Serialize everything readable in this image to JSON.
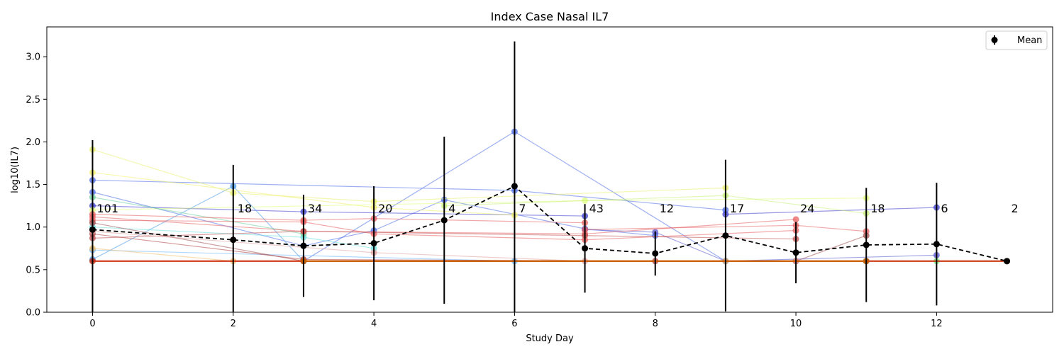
{
  "chart_data": {
    "type": "line",
    "title": "Index Case Nasal IL7",
    "xlabel": "Study Day",
    "ylabel": "log10(IL7)",
    "xlim": [
      -0.65,
      13.65
    ],
    "ylim": [
      0.0,
      3.35
    ],
    "xticks": [
      0,
      2,
      4,
      6,
      8,
      10,
      12
    ],
    "yticks": [
      0.0,
      0.5,
      1.0,
      1.5,
      2.0,
      2.5,
      3.0
    ],
    "xtick_labels": [
      "0",
      "2",
      "4",
      "6",
      "8",
      "10",
      "12"
    ],
    "ytick_labels": [
      "0.0",
      "0.5",
      "1.0",
      "1.5",
      "2.0",
      "2.5",
      "3.0"
    ],
    "grid": false,
    "legend": {
      "position": "top-right",
      "entries": [
        "Mean"
      ]
    },
    "mean_series": {
      "name": "Mean",
      "x": [
        0,
        2,
        3,
        4,
        5,
        6,
        7,
        8,
        9,
        10,
        11,
        12,
        13
      ],
      "y": [
        0.97,
        0.85,
        0.78,
        0.81,
        1.08,
        1.48,
        0.75,
        0.69,
        0.9,
        0.7,
        0.79,
        0.8,
        0.6
      ],
      "err": [
        1.05,
        0.88,
        0.6,
        0.67,
        0.98,
        1.7,
        0.52,
        0.26,
        0.89,
        0.36,
        0.67,
        0.72,
        0.0
      ]
    },
    "counts": [
      {
        "x": 0,
        "label": "101"
      },
      {
        "x": 2,
        "label": "18"
      },
      {
        "x": 3,
        "label": "34"
      },
      {
        "x": 4,
        "label": "20"
      },
      {
        "x": 5,
        "label": "4"
      },
      {
        "x": 6,
        "label": "7"
      },
      {
        "x": 7,
        "label": "43"
      },
      {
        "x": 8,
        "label": "12"
      },
      {
        "x": 9,
        "label": "17"
      },
      {
        "x": 10,
        "label": "24"
      },
      {
        "x": 11,
        "label": "18"
      },
      {
        "x": 12,
        "label": "6"
      },
      {
        "x": 13,
        "label": "2"
      }
    ],
    "counts_y": 1.22,
    "individual_series": [
      {
        "color": "#4f6fe8",
        "x": [
          0,
          6,
          9
        ],
        "y": [
          1.55,
          1.43,
          1.2
        ]
      },
      {
        "color": "#4f6fe8",
        "x": [
          3,
          6,
          9
        ],
        "y": [
          0.6,
          2.12,
          0.6
        ]
      },
      {
        "color": "#4f6fe8",
        "x": [
          0,
          3,
          4,
          5,
          7,
          8
        ],
        "y": [
          1.41,
          0.78,
          0.96,
          1.32,
          0.98,
          0.9
        ]
      },
      {
        "color": "#3f3fd0",
        "x": [
          0,
          3,
          7
        ],
        "y": [
          1.25,
          1.18,
          1.13
        ]
      },
      {
        "color": "#3f3fd0",
        "x": [
          9,
          12
        ],
        "y": [
          1.15,
          1.23
        ]
      },
      {
        "color": "#5a5ad0",
        "x": [
          7,
          8,
          9,
          12
        ],
        "y": [
          0.97,
          0.94,
          0.6,
          0.67
        ]
      },
      {
        "color": "#4a9ae8",
        "x": [
          0,
          2,
          3
        ],
        "y": [
          0.62,
          1.48,
          0.6
        ]
      },
      {
        "color": "#6fb8ff",
        "x": [
          0,
          6
        ],
        "y": [
          0.73,
          0.6
        ]
      },
      {
        "color": "#e8f06f",
        "x": [
          0,
          2,
          4,
          9
        ],
        "y": [
          1.91,
          1.4,
          1.3,
          1.46
        ]
      },
      {
        "color": "#f0f06f",
        "x": [
          0,
          4,
          6
        ],
        "y": [
          1.64,
          1.23,
          1.14
        ]
      },
      {
        "color": "#e0ff80",
        "x": [
          0,
          7,
          11
        ],
        "y": [
          1.2,
          1.31,
          1.34
        ]
      },
      {
        "color": "#c8f07a",
        "x": [
          5,
          9,
          11
        ],
        "y": [
          1.25,
          1.37,
          1.16
        ]
      },
      {
        "color": "#f0c070",
        "x": [
          0,
          2,
          9
        ],
        "y": [
          0.75,
          0.6,
          0.6
        ]
      },
      {
        "color": "#6fe0e0",
        "x": [
          0,
          3,
          4
        ],
        "y": [
          1.0,
          0.88,
          0.75
        ]
      },
      {
        "color": "#70d0a0",
        "x": [
          0,
          3
        ],
        "y": [
          1.35,
          0.92
        ]
      },
      {
        "color": "#7ff07f",
        "x": [
          10,
          11,
          12,
          13
        ],
        "y": [
          0.6,
          0.6,
          0.6,
          0.6
        ]
      },
      {
        "color": "#e86060",
        "x": [
          0,
          3,
          4,
          7
        ],
        "y": [
          1.15,
          1.08,
          1.1,
          1.05
        ]
      },
      {
        "color": "#e86060",
        "x": [
          0,
          3,
          7,
          10
        ],
        "y": [
          1.12,
          0.95,
          0.92,
          1.09
        ]
      },
      {
        "color": "#e86060",
        "x": [
          7,
          10,
          11
        ],
        "y": [
          0.97,
          1.02,
          0.95
        ]
      },
      {
        "color": "#e86060",
        "x": [
          0,
          3,
          4,
          7,
          10
        ],
        "y": [
          1.08,
          1.06,
          0.92,
          0.85,
          0.96
        ]
      },
      {
        "color": "#c05050",
        "x": [
          0,
          3,
          7,
          10
        ],
        "y": [
          0.87,
          0.95,
          0.9,
          0.86
        ]
      },
      {
        "color": "#a05050",
        "x": [
          0,
          3,
          10,
          11
        ],
        "y": [
          1.05,
          0.6,
          0.6,
          0.9
        ]
      },
      {
        "color": "#b04040",
        "x": [
          0,
          3,
          8,
          10,
          11
        ],
        "y": [
          0.92,
          0.62,
          0.6,
          0.6,
          0.6
        ]
      },
      {
        "color": "#e0a0a0",
        "x": [
          0,
          4,
          7,
          10
        ],
        "y": [
          0.95,
          0.7,
          0.6,
          0.6
        ]
      }
    ],
    "baseline_series": [
      {
        "color": "#cc2200",
        "x": [
          0,
          13
        ],
        "y": [
          0.6,
          0.6
        ]
      },
      {
        "color": "#cc6600",
        "x": [
          3,
          11
        ],
        "y": [
          0.6,
          0.6
        ]
      }
    ]
  }
}
